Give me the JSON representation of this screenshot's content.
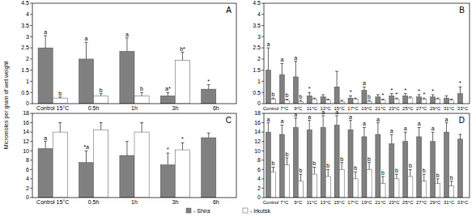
{
  "chart_data": [
    {
      "type": "bar",
      "title": "A",
      "y_label": "Micromoles per gram of wet weight",
      "legend": "bottom",
      "grid": false,
      "categories": [
        "Control 15°C",
        "0.5h",
        "1h",
        "3h",
        "6h"
      ],
      "ylim": [
        0,
        4.5
      ],
      "yticks": [
        0,
        0.5,
        1,
        1.5,
        2,
        2.5,
        3,
        3.5,
        4,
        4.5
      ],
      "series": [
        {
          "name": "- Shira",
          "color": "#808080",
          "values": [
            2.5,
            2.0,
            2.35,
            0.35,
            0.65
          ],
          "errors": [
            0.55,
            0.75,
            0.6,
            0.15,
            0.2
          ],
          "annotations": [
            "a",
            "a",
            "a",
            "a*",
            "*"
          ]
        },
        {
          "name": "- Irkutsk",
          "color": "#ffffff",
          "values": [
            0.25,
            0.35,
            0.35,
            1.95,
            null
          ],
          "errors": [
            0.05,
            0.1,
            0.15,
            0.35,
            null
          ],
          "annotations": [
            "b",
            "b",
            "b",
            "b*",
            null
          ]
        }
      ]
    },
    {
      "type": "bar",
      "title": "B",
      "grid": false,
      "categories": [
        "Control",
        "7°C",
        "9°C",
        "11°C",
        "13°C",
        "15°C",
        "17°C",
        "19°C",
        "21°C",
        "23°C",
        "25°C",
        "27°C",
        "29°C",
        "31°C",
        "33°C"
      ],
      "ylim": [
        0,
        4.5
      ],
      "yticks": [
        0,
        0.5,
        1,
        1.5,
        2,
        2.5,
        3,
        3.5,
        4,
        4.5
      ],
      "series": [
        {
          "name": "- Shira",
          "color": "#808080",
          "values": [
            1.5,
            1.3,
            1.2,
            0.35,
            0.3,
            0.75,
            0.25,
            0.6,
            0.3,
            0.35,
            0.35,
            0.3,
            0.3,
            0.25,
            0.45
          ],
          "errors": [
            1.0,
            0.5,
            0.7,
            0.15,
            0.1,
            0.7,
            0.1,
            0.15,
            0.1,
            0.1,
            0.1,
            0.1,
            0.1,
            0.1,
            0.3
          ],
          "annotations": [
            "a",
            "a",
            "a",
            "*",
            null,
            null,
            "*",
            "a",
            null,
            "*",
            "*",
            "*",
            "*",
            null,
            "*"
          ]
        },
        {
          "name": "- Irkutsk",
          "color": "#ffffff",
          "values": [
            0.2,
            0.15,
            0.1,
            0.2,
            0.15,
            0.1,
            0.2,
            0.1,
            0.15,
            0.2,
            0.25,
            0.2,
            0.2,
            0.15,
            null
          ],
          "errors": [
            0.05,
            0.05,
            0.05,
            0.05,
            0.05,
            0.05,
            0.05,
            0.05,
            0.05,
            0.05,
            0.05,
            0.05,
            0.05,
            0.05,
            null
          ],
          "annotations": [
            "b",
            "b",
            "b",
            null,
            null,
            null,
            null,
            "b",
            "*",
            "*",
            null,
            "*",
            null,
            null,
            null
          ]
        }
      ]
    },
    {
      "type": "bar",
      "title": "C",
      "grid": false,
      "categories": [
        "Control 15°C",
        "0.5h",
        "1h",
        "3h",
        "6h"
      ],
      "ylim": [
        0,
        18
      ],
      "yticks": [
        0,
        2,
        4,
        6,
        8,
        10,
        12,
        14,
        16,
        18
      ],
      "series": [
        {
          "name": "- Shira",
          "color": "#808080",
          "values": [
            10.5,
            7.5,
            9,
            7,
            12.8
          ],
          "errors": [
            1.5,
            2.5,
            3,
            2.5,
            1
          ],
          "annotations": [
            "a",
            "*a",
            null,
            "*",
            null
          ]
        },
        {
          "name": "- Irkutsk",
          "color": "#ffffff",
          "values": [
            14,
            14.5,
            14,
            10.2,
            null
          ],
          "errors": [
            2,
            1.5,
            2,
            1.5,
            null
          ],
          "annotations": [
            null,
            null,
            null,
            "*",
            null
          ]
        }
      ]
    },
    {
      "type": "bar",
      "title": "D",
      "grid": false,
      "categories": [
        "Control",
        "7°C",
        "9°C",
        "11°C",
        "13°C",
        "15°C",
        "17°C",
        "19°C",
        "21°C",
        "23°C",
        "25°C",
        "27°C",
        "29°C",
        "31°C",
        "33°C"
      ],
      "ylim": [
        0,
        18
      ],
      "yticks": [
        0,
        2,
        4,
        6,
        8,
        10,
        12,
        14,
        16,
        18
      ],
      "series": [
        {
          "name": "- Shira",
          "color": "#808080",
          "values": [
            14,
            13.5,
            15,
            14.5,
            15,
            15.5,
            14.5,
            13,
            13.5,
            11.5,
            12,
            13,
            12,
            14,
            12.5
          ],
          "errors": [
            2,
            2,
            2,
            2,
            2.5,
            2,
            2,
            2,
            2.5,
            2,
            2,
            2,
            2,
            2,
            1
          ],
          "annotations": [
            "a",
            "a",
            "a",
            "a",
            "a",
            "a",
            "a",
            "a",
            "a",
            "a",
            "a",
            "a",
            "a",
            "a",
            null
          ]
        },
        {
          "name": "- Irkutsk",
          "color": "#ffffff",
          "values": [
            5.5,
            7,
            3.5,
            5,
            4.5,
            6,
            4,
            6,
            3,
            4,
            4.5,
            3.5,
            3,
            2.5,
            null
          ],
          "errors": [
            1,
            1.5,
            1.5,
            1.5,
            1.5,
            1.5,
            1.5,
            1.5,
            1.5,
            1,
            1.5,
            1.5,
            1,
            1,
            null
          ],
          "annotations": [
            "b",
            "b",
            "b",
            "b",
            "b",
            "b",
            "b",
            "b",
            "b",
            "b",
            "b",
            "b",
            "b",
            "b",
            null
          ]
        }
      ]
    }
  ]
}
